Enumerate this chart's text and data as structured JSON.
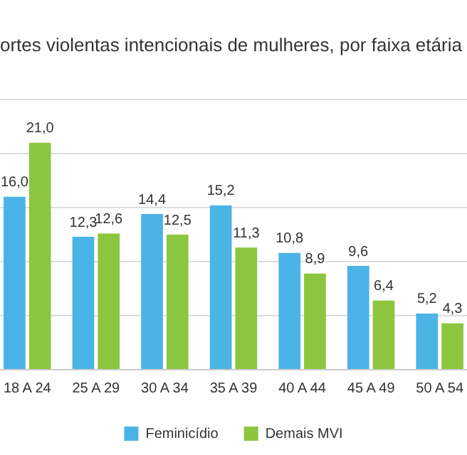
{
  "chart_data": {
    "type": "bar",
    "title": "ortes violentas intencionais de mulheres, por faixa etária",
    "categories": [
      "18 A 24",
      "25 A 29",
      "30 A 34",
      "35 A 39",
      "40 A 44",
      "45 A 49",
      "50 A 54"
    ],
    "series": [
      {
        "name": "Feminicídio",
        "color": "#4cb3e6",
        "values": [
          16.0,
          12.3,
          14.4,
          15.2,
          10.8,
          9.6,
          5.2
        ],
        "value_labels": [
          "16,0",
          "12,3",
          "14,4",
          "15,2",
          "10,8",
          "9,6",
          "5,2"
        ]
      },
      {
        "name": "Demais MVI",
        "color": "#8cc63f",
        "values": [
          21.0,
          12.6,
          12.5,
          11.3,
          8.9,
          6.4,
          4.3
        ],
        "value_labels": [
          "21,0",
          "12,6",
          "12,5",
          "11,3",
          "8,9",
          "6,4",
          "4,3"
        ]
      }
    ],
    "ylim": [
      0,
      25
    ],
    "yticks": [
      0,
      5,
      10,
      15,
      20,
      25
    ],
    "grid": "y",
    "tick_labels": "x",
    "legend": "bottom",
    "data_labels": true
  }
}
